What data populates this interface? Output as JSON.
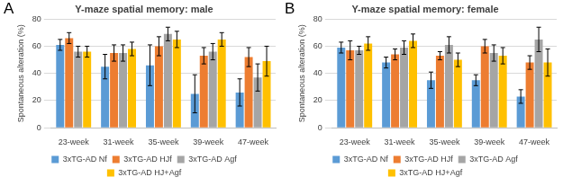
{
  "chart_data": [
    {
      "type": "bar",
      "panel_label": "A",
      "title": "Y-maze spatial memory: male",
      "y_label": "Spontaneous alteration (%)",
      "categories": [
        "23-week",
        "31-week",
        "35-week",
        "39-week",
        "47-week"
      ],
      "series": [
        {
          "name": "3xTG-AD Nf",
          "color": "#5b9bd5",
          "values": [
            61,
            45,
            46,
            25,
            26
          ],
          "errors": [
            4,
            9,
            15,
            14,
            10
          ]
        },
        {
          "name": "3xTG-AD HJf",
          "color": "#ed7d31",
          "values": [
            66,
            55,
            60,
            53,
            52
          ],
          "errors": [
            4,
            6,
            7,
            6,
            7
          ]
        },
        {
          "name": "3xTG-AD Agf",
          "color": "#a5a5a5",
          "values": [
            56,
            55,
            69,
            56,
            37
          ],
          "errors": [
            4,
            6,
            5,
            6,
            10
          ]
        },
        {
          "name": "3xTG-AD HJ+Agf",
          "color": "#ffc000",
          "values": [
            56,
            58,
            65,
            65,
            49
          ],
          "errors": [
            4,
            5,
            6,
            5,
            11
          ]
        }
      ],
      "ylim": [
        0,
        80
      ],
      "yticks": [
        0,
        20,
        40,
        60,
        80
      ],
      "grid": true,
      "legend": "bottom"
    },
    {
      "type": "bar",
      "panel_label": "B",
      "title": "Y-maze spatial memory: female",
      "y_label": "Spontaneous alteration (%)",
      "categories": [
        "23-week",
        "31-week",
        "35-week",
        "39-week",
        "47-week"
      ],
      "series": [
        {
          "name": "3xTG-AD Nf",
          "color": "#5b9bd5",
          "values": [
            59,
            48,
            35,
            35,
            23
          ],
          "errors": [
            4,
            4,
            6,
            4,
            5
          ]
        },
        {
          "name": "3xTG-AD HJf",
          "color": "#ed7d31",
          "values": [
            57,
            54,
            53,
            60,
            48
          ],
          "errors": [
            7,
            4,
            3,
            5,
            5
          ]
        },
        {
          "name": "3xTG-AD Agf",
          "color": "#a5a5a5",
          "values": [
            57,
            59,
            61,
            55,
            65
          ],
          "errors": [
            3,
            5,
            6,
            6,
            9
          ]
        },
        {
          "name": "3xTG-AD HJ+Agf",
          "color": "#ffc000",
          "values": [
            62,
            64,
            50,
            53,
            48
          ],
          "errors": [
            5,
            5,
            5,
            6,
            10
          ]
        }
      ],
      "ylim": [
        0,
        80
      ],
      "yticks": [
        0,
        20,
        40,
        60,
        80
      ],
      "grid": true,
      "legend": "bottom"
    }
  ]
}
